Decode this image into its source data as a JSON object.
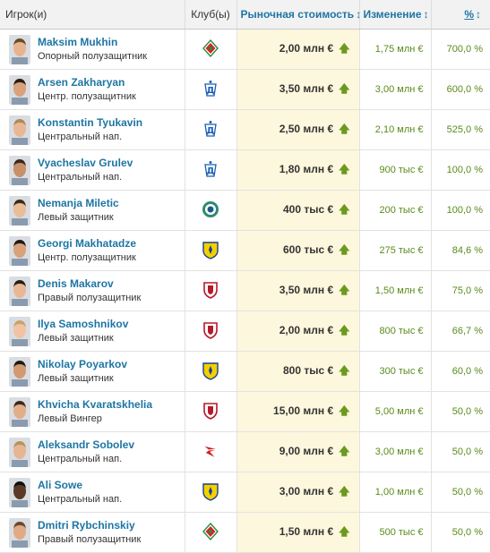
{
  "header": {
    "player": "Игрок(и)",
    "club": "Клуб(ы)",
    "market_value": "Рыночная стоимость",
    "change": "Изменение",
    "percent": "%",
    "sort_icon": "↕"
  },
  "up_icon": "🡅",
  "rows": [
    {
      "name": "Maksim Mukhin",
      "position": "Опорный полузащитник",
      "club_icon": "lokomotiv-crest-icon",
      "value": "2,00 млн €",
      "change": "1,75 млн €",
      "percent": "700,0 %"
    },
    {
      "name": "Arsen Zakharyan",
      "position": "Центр. полузащитник",
      "club_icon": "dynamo-crest-icon",
      "value": "3,50 млн €",
      "change": "3,00 млн €",
      "percent": "600,0 %"
    },
    {
      "name": "Konstantin Tyukavin",
      "position": "Центральный нап.",
      "club_icon": "dynamo-crest-icon",
      "value": "2,50 млн €",
      "change": "2,10 млн €",
      "percent": "525,0 %"
    },
    {
      "name": "Vyacheslav Grulev",
      "position": "Центральный нап.",
      "club_icon": "dynamo-crest-icon",
      "value": "1,80 млн €",
      "change": "900 тыс €",
      "percent": "100,0 %"
    },
    {
      "name": "Nemanja Miletic",
      "position": "Левый защитник",
      "club_icon": "ufa-crest-icon",
      "value": "400 тыс €",
      "change": "200 тыс €",
      "percent": "100,0 %"
    },
    {
      "name": "Georgi Makhatadze",
      "position": "Центр. полузащитник",
      "club_icon": "rostov-crest-icon",
      "value": "600 тыс €",
      "change": "275 тыс €",
      "percent": "84,6 %"
    },
    {
      "name": "Denis Makarov",
      "position": "Правый полузащитник",
      "club_icon": "rubin-crest-icon",
      "value": "3,50 млн €",
      "change": "1,50 млн €",
      "percent": "75,0 %"
    },
    {
      "name": "Ilya Samoshnikov",
      "position": "Левый защитник",
      "club_icon": "rubin-crest-icon",
      "value": "2,00 млн €",
      "change": "800 тыс €",
      "percent": "66,7 %"
    },
    {
      "name": "Nikolay Poyarkov",
      "position": "Левый защитник",
      "club_icon": "rostov-crest-icon",
      "value": "800 тыс €",
      "change": "300 тыс €",
      "percent": "60,0 %"
    },
    {
      "name": "Khvicha Kvaratskhelia",
      "position": "Левый Вингер",
      "club_icon": "rubin-crest-icon",
      "value": "15,00 млн €",
      "change": "5,00 млн €",
      "percent": "50,0 %"
    },
    {
      "name": "Aleksandr Sobolev",
      "position": "Центральный нап.",
      "club_icon": "spartak-crest-icon",
      "value": "9,00 млн €",
      "change": "3,00 млн €",
      "percent": "50,0 %"
    },
    {
      "name": "Ali Sowe",
      "position": "Центральный нап.",
      "club_icon": "rostov-crest-icon",
      "value": "3,00 млн €",
      "change": "1,00 млн €",
      "percent": "50,0 %"
    },
    {
      "name": "Dmitri Rybchinskiy",
      "position": "Правый полузащитник",
      "club_icon": "lokomotiv-crest-icon",
      "value": "1,50 млн €",
      "change": "500 тыс €",
      "percent": "50,0 %"
    }
  ]
}
